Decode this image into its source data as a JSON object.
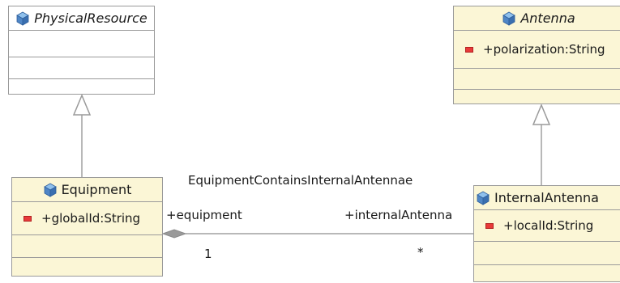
{
  "classes": {
    "physical_resource": {
      "name": "PhysicalResource"
    },
    "antenna": {
      "name": "Antenna",
      "attribute": "+polarization:String"
    },
    "equipment": {
      "name": "Equipment",
      "attribute": "+globalId:String"
    },
    "internal_antenna": {
      "name": "InternalAntenna",
      "attribute": "+localId:String"
    }
  },
  "association": {
    "name": "EquipmentContainsInternalAntennae",
    "source_role": "+equipment",
    "target_role": "+internalAntenna",
    "source_multiplicity": "1",
    "target_multiplicity": "*"
  },
  "colors": {
    "class_fill": "#fbf6d6",
    "abstract_fill": "#ffffff",
    "border": "#9a9a9a",
    "line": "#a0a0a0",
    "attribute_marker": "#e83a3a",
    "class_icon": "#3a6fb0"
  }
}
